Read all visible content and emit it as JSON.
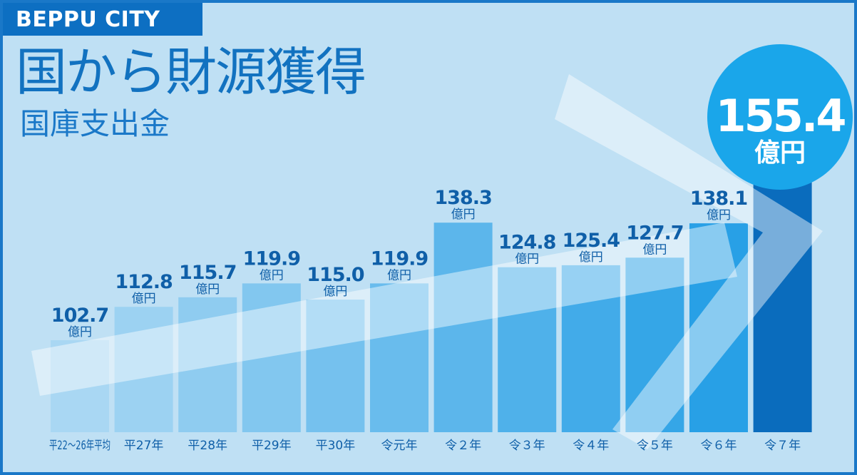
{
  "header": {
    "brand": "BEPPU CITY",
    "title": "国から財源獲得",
    "subtitle": "国庫支出金"
  },
  "colors": {
    "background": "#bfe0f4",
    "brand": "#0d6fc2",
    "bar_light": "#a9d7f3",
    "bar_mid": "#4db3eb",
    "bar_dark": "#0a6cbd",
    "badge": "#1aa6ea",
    "text": "#0f5fa8"
  },
  "chart_data": {
    "type": "bar",
    "title": "国庫支出金",
    "unit": "億円",
    "categories": [
      "平22～26年平均",
      "平27年",
      "平28年",
      "平29年",
      "平30年",
      "令元年",
      "令２年",
      "令３年",
      "令４年",
      "令５年",
      "令６年",
      "令７年"
    ],
    "values": [
      102.7,
      112.8,
      115.7,
      119.9,
      115.0,
      119.9,
      138.3,
      124.8,
      125.4,
      127.7,
      138.1,
      155.4
    ],
    "value_labels": [
      "102.7",
      "112.8",
      "115.7",
      "119.9",
      "115.0",
      "119.9",
      "138.3",
      "124.8",
      "125.4",
      "127.7",
      "138.1",
      "155.4"
    ],
    "highlight_index": 11,
    "highlight_label": "155.4",
    "ylim": [
      0,
      160
    ],
    "grid": false,
    "legend": "none",
    "decoration": "upward trend arrow"
  }
}
